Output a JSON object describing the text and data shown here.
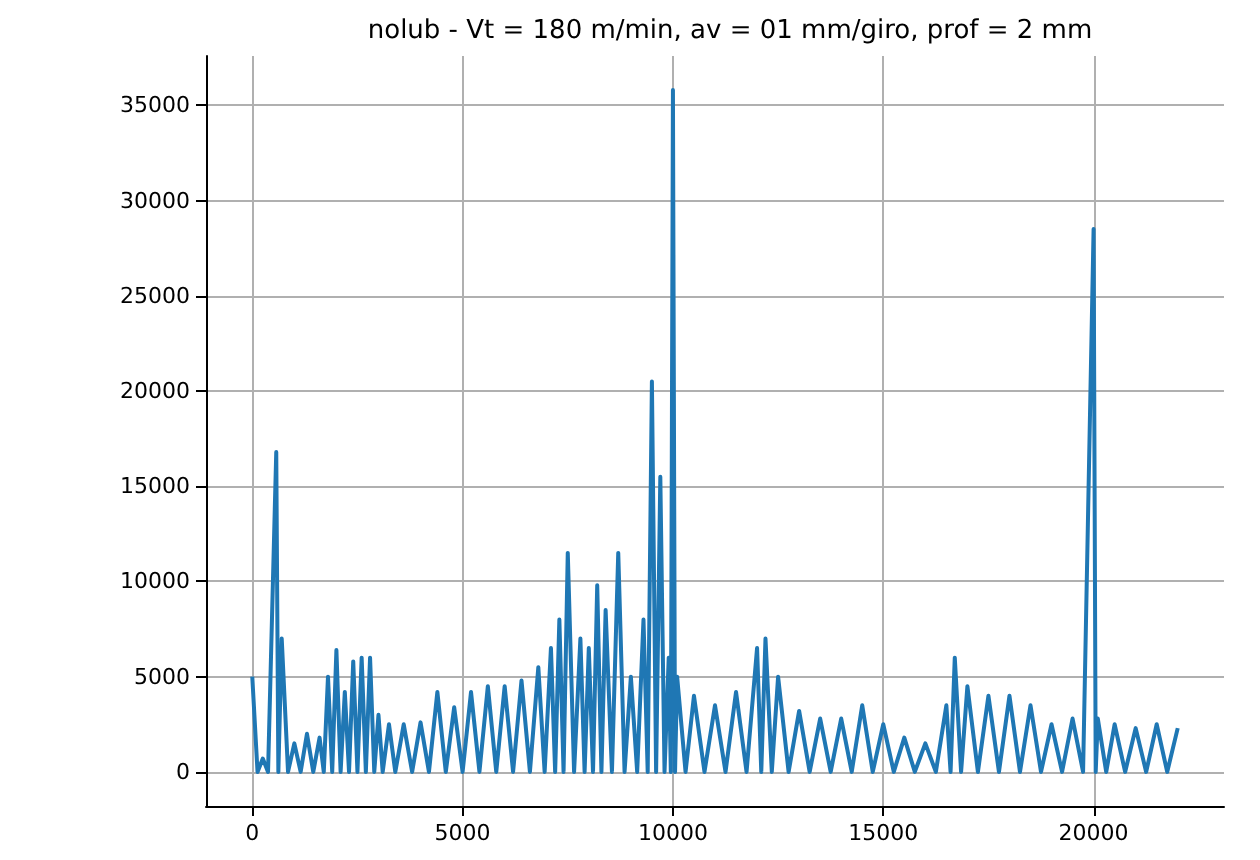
{
  "chart_data": {
    "type": "line",
    "title": "nolub - Vt = 180 m/min, av = 01 mm/giro, prof = 2 mm",
    "x": [
      0,
      125,
      250,
      375,
      570,
      620,
      700,
      850,
      1000,
      1150,
      1300,
      1450,
      1600,
      1700,
      1800,
      1900,
      2000,
      2100,
      2200,
      2300,
      2400,
      2500,
      2600,
      2700,
      2800,
      2900,
      3000,
      3100,
      3250,
      3400,
      3600,
      3800,
      4000,
      4200,
      4400,
      4600,
      4800,
      5000,
      5200,
      5400,
      5600,
      5800,
      6000,
      6200,
      6400,
      6600,
      6800,
      6950,
      7100,
      7200,
      7300,
      7400,
      7500,
      7650,
      7800,
      7900,
      8000,
      8100,
      8200,
      8300,
      8400,
      8550,
      8700,
      8850,
      9000,
      9150,
      9300,
      9400,
      9500,
      9600,
      9700,
      9800,
      9900,
      9950,
      10000,
      10050,
      10100,
      10300,
      10500,
      10750,
      11000,
      11250,
      11500,
      11750,
      12000,
      12100,
      12200,
      12350,
      12500,
      12750,
      13000,
      13250,
      13500,
      13750,
      14000,
      14250,
      14500,
      14750,
      15000,
      15250,
      15500,
      15750,
      16000,
      16250,
      16500,
      16600,
      16700,
      16850,
      17000,
      17250,
      17500,
      17750,
      18000,
      18250,
      18500,
      18750,
      19000,
      19250,
      19500,
      19750,
      20000,
      20050,
      20100,
      20300,
      20500,
      20750,
      21000,
      21250,
      21500,
      21750,
      22000
    ],
    "values": [
      5000,
      0,
      700,
      0,
      16800,
      0,
      7000,
      0,
      1500,
      0,
      2000,
      0,
      1800,
      0,
      5000,
      0,
      6400,
      0,
      4200,
      0,
      5800,
      0,
      6000,
      0,
      6000,
      0,
      3000,
      0,
      2500,
      0,
      2500,
      0,
      2600,
      0,
      4200,
      0,
      3400,
      0,
      4200,
      0,
      4500,
      0,
      4500,
      0,
      4800,
      0,
      5500,
      0,
      6500,
      0,
      8000,
      0,
      11500,
      0,
      7000,
      0,
      6500,
      0,
      9800,
      0,
      8500,
      0,
      11500,
      0,
      5000,
      0,
      8000,
      0,
      20500,
      0,
      15500,
      0,
      6000,
      0,
      35800,
      0,
      5000,
      0,
      4000,
      0,
      3500,
      0,
      4200,
      0,
      6500,
      0,
      7000,
      0,
      5000,
      0,
      3200,
      0,
      2800,
      0,
      2800,
      0,
      3500,
      0,
      2500,
      0,
      1800,
      0,
      1500,
      0,
      3500,
      0,
      6000,
      0,
      4500,
      0,
      4000,
      0,
      4000,
      0,
      3500,
      0,
      2500,
      0,
      2800,
      0,
      28500,
      0,
      2800,
      0,
      2500,
      0,
      2300,
      0,
      2500,
      0,
      2300
    ],
    "color": "#1f77b4",
    "xlim": [
      -1100,
      23100
    ],
    "ylim": [
      -1790,
      37590
    ],
    "xticks": [
      0,
      5000,
      10000,
      15000,
      20000
    ],
    "yticks": [
      0,
      5000,
      10000,
      15000,
      20000,
      25000,
      30000,
      35000
    ],
    "grid": true,
    "marker": "none",
    "line_style": "solid"
  }
}
